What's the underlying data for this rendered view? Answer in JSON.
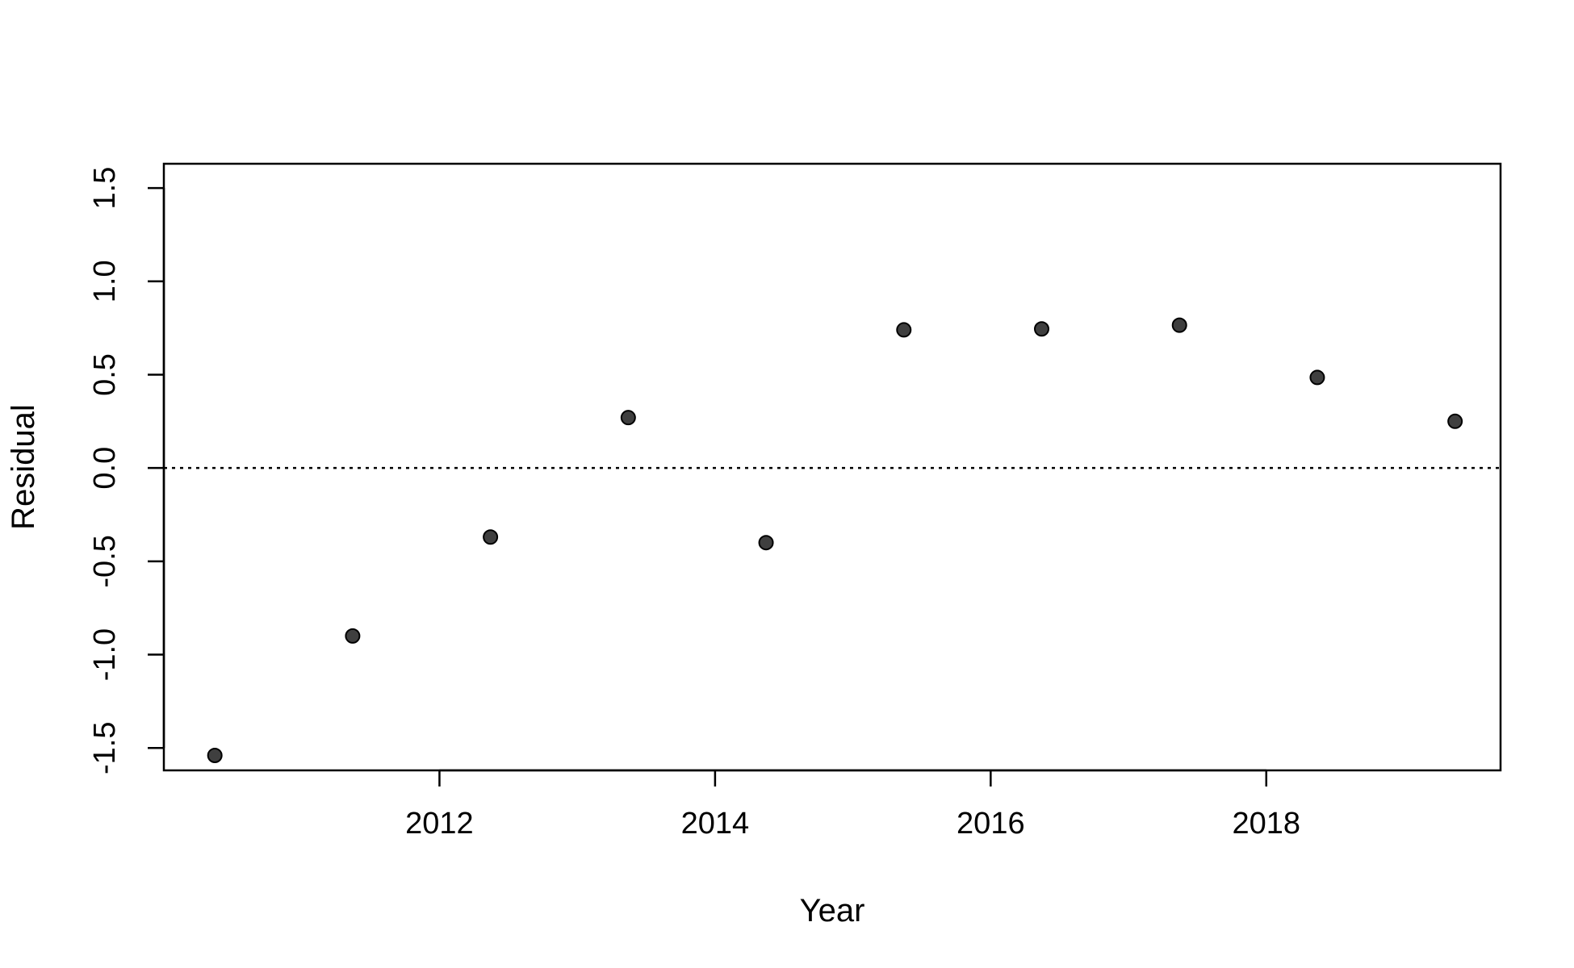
{
  "chart_data": {
    "type": "scatter",
    "title": "",
    "xlabel": "Year",
    "ylabel": "Residual",
    "xlim": [
      2010.0,
      2019.7
    ],
    "ylim": [
      -1.62,
      1.63
    ],
    "xticks": [
      2012,
      2014,
      2016,
      2018
    ],
    "xtick_labels": [
      "2012",
      "2014",
      "2016",
      "2018"
    ],
    "yticks": [
      -1.5,
      -1.0,
      -0.5,
      0.0,
      0.5,
      1.0,
      1.5
    ],
    "ytick_labels": [
      "-1.5",
      "-1.0",
      "-0.5",
      "0.0",
      "0.5",
      "1.0",
      "1.5"
    ],
    "reference_line": {
      "y": 0.0,
      "style": "dotted"
    },
    "grid": false,
    "series": [
      {
        "color": "#3f3f3f",
        "x": [
          2010.37,
          2011.37,
          2012.37,
          2013.37,
          2014.37,
          2015.37,
          2016.37,
          2017.37,
          2018.37,
          2019.37
        ],
        "y": [
          -1.54,
          -0.9,
          -0.37,
          0.27,
          -0.4,
          0.74,
          0.745,
          0.765,
          0.485,
          0.25
        ]
      }
    ]
  }
}
